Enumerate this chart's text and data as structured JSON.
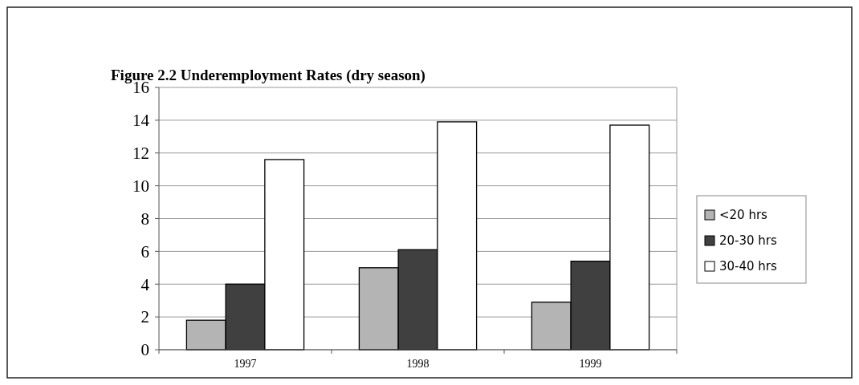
{
  "chart_data": {
    "type": "bar",
    "title": "Figure 2.2 Underemployment Rates (dry season)",
    "categories": [
      "1997",
      "1998",
      "1999"
    ],
    "series": [
      {
        "name": "<20 hrs",
        "color": "#b4b4b4",
        "values": [
          1.8,
          5.0,
          2.9
        ]
      },
      {
        "name": "20-30 hrs",
        "color": "#404040",
        "values": [
          4.0,
          6.1,
          5.4
        ]
      },
      {
        "name": "30-40 hrs",
        "color": "#ffffff",
        "values": [
          11.6,
          13.9,
          13.7
        ]
      }
    ],
    "ylim": [
      0,
      16
    ],
    "yticks": [
      0,
      2,
      4,
      6,
      8,
      10,
      12,
      14,
      16
    ],
    "grid": "y",
    "legend": "right"
  }
}
